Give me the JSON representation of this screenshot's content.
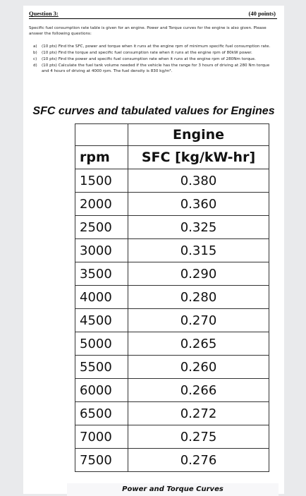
{
  "header": {
    "question_title": "Question 3:",
    "points": "(40 points)"
  },
  "intro": "Specific fuel consumption rate table is given for an engine. Power and Torque curves for the engine is also given. Please answer the following questions:",
  "questions": [
    {
      "letter": "a)",
      "text": "(10 pts) Find the SFC, power and torque when it runs at the engine rpm of minimum specific fuel consumption rate."
    },
    {
      "letter": "b)",
      "text": "(10 pts) Find the torque and specific fuel consumption rate when it runs at the engine rpm of 80kW power."
    },
    {
      "letter": "c)",
      "text": "(10 pts) Find the power and specific fuel consumption rate when it runs at the engine rpm of 280Nm torque."
    },
    {
      "letter": "d)",
      "text": "(10 pts) Calculate the fuel tank volume needed if the vehicle has the range for 3 hours of driving at 280 Nm torque and 4 hours of driving at 4000 rpm. The fuel density is 830 kg/m³."
    }
  ],
  "section_title": "SFC curves and tabulated values for Engines",
  "table": {
    "group_header": "Engine",
    "columns": [
      "rpm",
      "SFC [kg/kW-hr]"
    ],
    "rows": [
      {
        "rpm": "1500",
        "sfc": "0.380"
      },
      {
        "rpm": "2000",
        "sfc": "0.360"
      },
      {
        "rpm": "2500",
        "sfc": "0.325"
      },
      {
        "rpm": "3000",
        "sfc": "0.315"
      },
      {
        "rpm": "3500",
        "sfc": "0.290"
      },
      {
        "rpm": "4000",
        "sfc": "0.280"
      },
      {
        "rpm": "4500",
        "sfc": "0.270"
      },
      {
        "rpm": "5000",
        "sfc": "0.265"
      },
      {
        "rpm": "5500",
        "sfc": "0.260"
      },
      {
        "rpm": "6000",
        "sfc": "0.266"
      },
      {
        "rpm": "6500",
        "sfc": "0.272"
      },
      {
        "rpm": "7000",
        "sfc": "0.275"
      },
      {
        "rpm": "7500",
        "sfc": "0.276"
      }
    ]
  },
  "footer_caption": "Power and Torque Curves"
}
